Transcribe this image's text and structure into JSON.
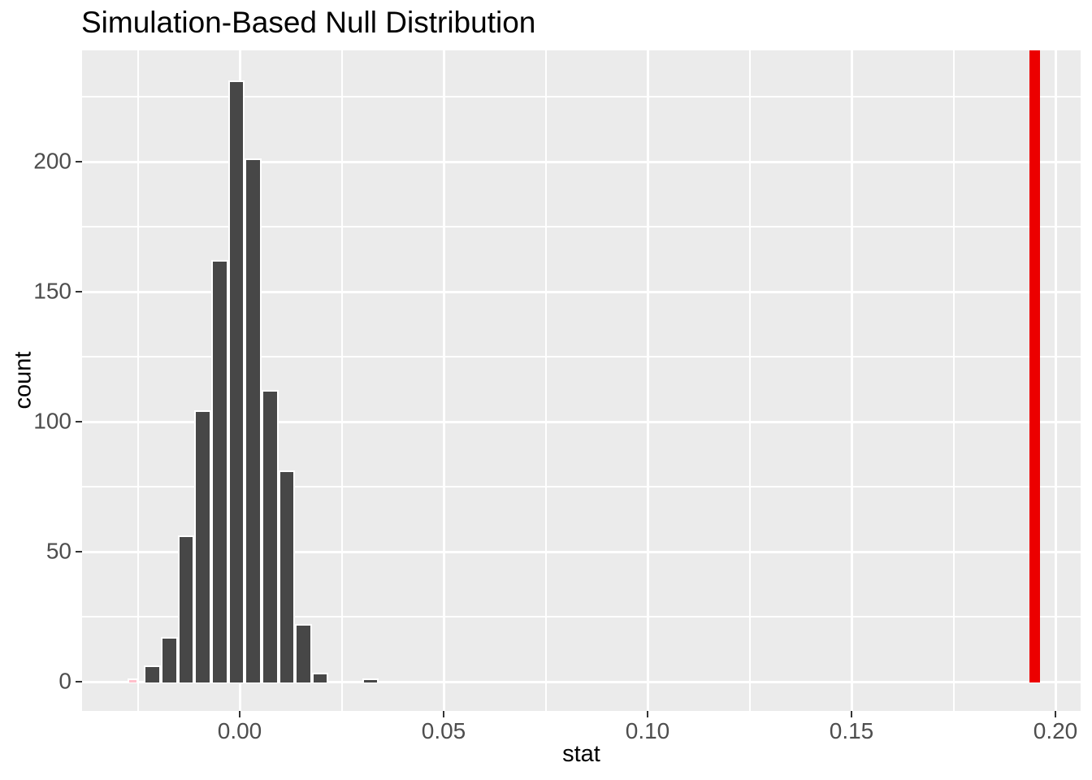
{
  "header": {
    "title": "Simulation-Based Null Distribution"
  },
  "chart_data": {
    "type": "bar",
    "subtype": "histogram",
    "title": "Simulation-Based Null Distribution",
    "xlabel": "stat",
    "ylabel": "count",
    "legend": "none",
    "grid": "white major and minor gridlines on grey panel",
    "panel_color": "#EBEBEB",
    "bar_fill": "#474747",
    "bar_stroke": "#FFFFFF",
    "axis_text_color": "#4D4D4D",
    "tick_mark_color": "#333333",
    "xlim": [
      -0.0387,
      0.2062
    ],
    "ylim": [
      -11.6,
      242.5
    ],
    "x_ticks": {
      "values": [
        0.0,
        0.05,
        0.1,
        0.15,
        0.2
      ],
      "labels": [
        "0.00",
        "0.05",
        "0.10",
        "0.15",
        "0.20"
      ]
    },
    "x_minor_ticks": [
      -0.025,
      0.025,
      0.075,
      0.125,
      0.175
    ],
    "y_ticks": {
      "values": [
        0,
        50,
        100,
        150,
        200
      ],
      "labels": [
        "0",
        "50",
        "100",
        "150",
        "200"
      ]
    },
    "y_minor_ticks": [
      25,
      75,
      125,
      175,
      225
    ],
    "bin_width": 0.004112,
    "bins": [
      {
        "center": -0.02548,
        "count": 1,
        "fill": "#FFC0CB",
        "width_frac": 0.63
      },
      {
        "center": -0.02137,
        "count": 6
      },
      {
        "center": -0.01726,
        "count": 17
      },
      {
        "center": -0.01314,
        "count": 56
      },
      {
        "center": -0.00903,
        "count": 104
      },
      {
        "center": -0.00492,
        "count": 162
      },
      {
        "center": -0.00081,
        "count": 231
      },
      {
        "center": 0.0033,
        "count": 201
      },
      {
        "center": 0.00742,
        "count": 112
      },
      {
        "center": 0.01153,
        "count": 81
      },
      {
        "center": 0.01564,
        "count": 22
      },
      {
        "center": 0.01975,
        "count": 3
      },
      {
        "center": 0.02387,
        "count": 0
      },
      {
        "center": 0.02798,
        "count": 0
      },
      {
        "center": 0.03209,
        "count": 1
      }
    ],
    "obs_stat_line": {
      "value": 0.195,
      "color": "#EC0000",
      "stroke_px": 13
    }
  }
}
